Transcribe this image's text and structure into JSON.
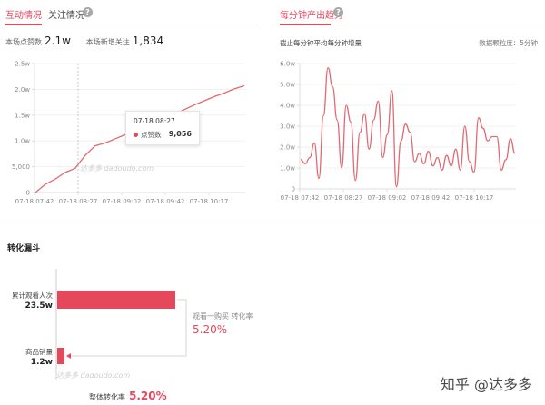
{
  "left_panel": {
    "tabs": [
      {
        "label": "互动情况",
        "active": true
      },
      {
        "label": "关注情况",
        "active": false
      }
    ],
    "stats": [
      {
        "label": "本场点赞数",
        "value": "2.1w"
      },
      {
        "label": "本场新增关注",
        "value": "1,834"
      }
    ],
    "watermark": "达多多 dadoudo.com",
    "tooltip": {
      "time": "07-18 08:27",
      "series": "点赞数",
      "value": "9,056"
    }
  },
  "right_panel": {
    "tabs": [
      {
        "label": "每分钟产出趋势",
        "active": true
      }
    ],
    "subtitle": "截止每分钟平均每分钟增量",
    "granularity": "数据颗粒度：5分钟"
  },
  "funnel": {
    "title": "转化漏斗",
    "steps": [
      {
        "label": "累计观看人次",
        "value": "23.5w",
        "amount": 235000
      },
      {
        "label": "商品销量",
        "value": "1.2w",
        "amount": 12000
      }
    ],
    "conversion_label": "观看一购买 转化率",
    "conversion_value": "5.20%",
    "overall_label": "整体转化率",
    "overall_value": "5.20%",
    "watermark": "达多多 dadoudo.com"
  },
  "credit": "知乎 @达多多",
  "colors": {
    "accent": "#e5475b",
    "line": "#e06a72",
    "axis": "#dddddd",
    "text_muted": "#888888"
  },
  "chart_data": [
    {
      "type": "line",
      "series": [
        {
          "name": "点赞数",
          "values": [
            0,
            1600,
            2600,
            3900,
            4700,
            7200,
            9056,
            9600,
            10400,
            11200,
            11800,
            12700,
            13300,
            14100,
            15200,
            16100,
            17000,
            17800,
            18600,
            19300,
            20100,
            20700
          ]
        }
      ],
      "x_ticks": [
        "07-18 07:42",
        "07-18 08:27",
        "07-18 09:02",
        "07-18 09:42",
        "07-18 10:17"
      ],
      "y_ticks": [
        "0",
        "5,000",
        "1.0w",
        "1.5w",
        "2.0w",
        "2.5w"
      ],
      "ylim": [
        0,
        25000
      ],
      "grid": true
    },
    {
      "type": "line",
      "series": [
        {
          "values": [
            1400,
            1200,
            1500,
            2200,
            500,
            3500,
            5800,
            4900,
            3300,
            1000,
            4000,
            3200,
            400,
            2700,
            3600,
            1900,
            3300,
            4200,
            1500,
            2600,
            4700,
            100,
            2300,
            3100,
            2700,
            1300,
            1700,
            1200,
            1800,
            1100,
            1500,
            900,
            1600,
            1100,
            1900,
            900,
            3000,
            1300,
            800,
            3400,
            2900,
            2300,
            2500,
            2500,
            900,
            1400,
            2400,
            1700
          ]
        }
      ],
      "x_ticks": [
        "07-18 07:42",
        "07-18 08:27",
        "07-18 09:02",
        "07-18 09:42",
        "07-18 10:17"
      ],
      "y_ticks": [
        "0",
        "1.0w",
        "2.0w",
        "3.0w",
        "4.0w",
        "5.0w",
        "6.0w"
      ],
      "ylim": [
        0,
        6000
      ],
      "grid": true
    }
  ]
}
